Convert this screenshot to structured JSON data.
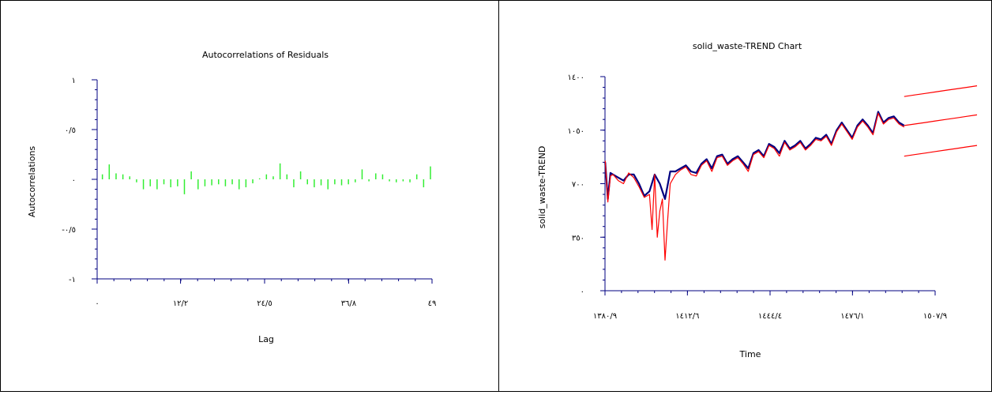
{
  "chart_data": [
    {
      "type": "bar",
      "title": "Autocorrelations of Residuals",
      "xlabel": "Lag",
      "ylabel": "Autocorrelations",
      "ylim": [
        -1,
        1
      ],
      "xlim": [
        0,
        49
      ],
      "y_ticks": [
        1,
        0.5,
        0,
        -0.5,
        -1
      ],
      "y_tick_labels": [
        "١",
        "٠/٥",
        "٠",
        "-٠/٥",
        "-١"
      ],
      "x_ticks": [
        0,
        12.2,
        24.5,
        36.8,
        49
      ],
      "x_tick_labels": [
        "٠",
        "١٢/٢",
        "٢٤/٥",
        "٣٦/٨",
        "٤٩"
      ],
      "bar_color": "#33ee33",
      "lags": [
        1,
        2,
        3,
        4,
        5,
        6,
        7,
        8,
        9,
        10,
        11,
        12,
        13,
        14,
        15,
        16,
        17,
        18,
        19,
        20,
        21,
        22,
        23,
        24,
        25,
        26,
        27,
        28,
        29,
        30,
        31,
        32,
        33,
        34,
        35,
        36,
        37,
        38,
        39,
        40,
        41,
        42,
        43,
        44,
        45,
        46,
        47,
        48,
        49
      ],
      "values": [
        0.05,
        0.15,
        0.06,
        0.05,
        0.03,
        -0.03,
        -0.1,
        -0.07,
        -0.1,
        -0.05,
        -0.08,
        -0.07,
        -0.15,
        0.08,
        -0.1,
        -0.07,
        -0.06,
        -0.05,
        -0.07,
        -0.05,
        -0.1,
        -0.08,
        -0.04,
        0.01,
        0.05,
        0.03,
        0.16,
        0.05,
        -0.08,
        0.08,
        -0.05,
        -0.08,
        -0.06,
        -0.1,
        -0.05,
        -0.06,
        -0.05,
        -0.03,
        0.1,
        -0.02,
        0.06,
        0.05,
        -0.02,
        -0.03,
        -0.02,
        -0.03,
        0.05,
        -0.08,
        0.13
      ]
    },
    {
      "type": "line",
      "title": "solid_waste-TREND Chart",
      "xlabel": "Time",
      "ylabel": "solid_waste-TREND",
      "ylim": [
        0,
        1400
      ],
      "xlim": [
        1380.9,
        1507.9
      ],
      "y_ticks": [
        0,
        350,
        700,
        1050,
        1400
      ],
      "y_tick_labels": [
        "٠",
        "٣٥٠",
        "٧٠٠",
        "١٠٥٠",
        "١٤٠٠"
      ],
      "x_ticks": [
        1380.9,
        1412.6,
        1444.4,
        1476.1,
        1507.9
      ],
      "x_tick_labels": [
        "١٣٨٠/٩",
        "١٤١٢/٦",
        "١٤٤٤/٤",
        "١٤٧٦/١",
        "١٥٠٧/٩"
      ],
      "series": [
        {
          "role": "observed",
          "color": "#000080",
          "x": [
            1381,
            1382,
            1383,
            1384,
            1386,
            1388,
            1390,
            1392,
            1394,
            1396,
            1398,
            1400,
            1402,
            1404,
            1406,
            1408,
            1410,
            1412,
            1414,
            1416,
            1418,
            1420,
            1422,
            1424,
            1426,
            1428,
            1430,
            1432,
            1434,
            1436,
            1438,
            1440,
            1442,
            1444,
            1446,
            1448,
            1450,
            1452,
            1454,
            1456,
            1458,
            1460,
            1462,
            1464,
            1466,
            1468,
            1470,
            1472,
            1474,
            1476,
            1478,
            1480,
            1482,
            1484,
            1486,
            1488,
            1490,
            1492,
            1494,
            1496
          ],
          "values": [
            840,
            600,
            770,
            760,
            740,
            720,
            760,
            760,
            700,
            620,
            650,
            760,
            700,
            600,
            780,
            780,
            800,
            820,
            780,
            770,
            830,
            860,
            800,
            880,
            890,
            830,
            860,
            880,
            840,
            800,
            900,
            920,
            880,
            960,
            940,
            900,
            980,
            930,
            950,
            980,
            930,
            960,
            1000,
            990,
            1020,
            960,
            1050,
            1100,
            1050,
            1000,
            1080,
            1120,
            1080,
            1030,
            1170,
            1100,
            1130,
            1140,
            1100,
            1080
          ]
        },
        {
          "role": "fitted",
          "color": "#ff0000",
          "x": [
            1381,
            1382,
            1383,
            1384,
            1386,
            1388,
            1390,
            1392,
            1394,
            1396,
            1397,
            1398,
            1399,
            1400,
            1401,
            1402,
            1403,
            1404,
            1405,
            1406,
            1408,
            1410,
            1412,
            1414,
            1416,
            1418,
            1420,
            1422,
            1424,
            1426,
            1428,
            1430,
            1432,
            1434,
            1436,
            1438,
            1440,
            1442,
            1444,
            1446,
            1448,
            1450,
            1452,
            1454,
            1456,
            1458,
            1460,
            1462,
            1464,
            1466,
            1468,
            1470,
            1472,
            1474,
            1476,
            1478,
            1480,
            1482,
            1484,
            1486,
            1488,
            1490,
            1492,
            1494,
            1496
          ],
          "values": [
            850,
            580,
            750,
            760,
            720,
            700,
            770,
            740,
            680,
            610,
            620,
            630,
            400,
            760,
            350,
            520,
            600,
            200,
            460,
            700,
            760,
            790,
            810,
            760,
            750,
            820,
            850,
            780,
            870,
            880,
            820,
            850,
            870,
            830,
            780,
            890,
            910,
            870,
            950,
            930,
            880,
            970,
            920,
            940,
            970,
            920,
            950,
            990,
            980,
            1010,
            950,
            1040,
            1090,
            1040,
            990,
            1070,
            1110,
            1070,
            1020,
            1160,
            1090,
            1120,
            1130,
            1090,
            1070
          ]
        },
        {
          "role": "forecast",
          "color": "#ff0000",
          "x": [
            1496,
            1500,
            1504,
            1508,
            1512,
            1516,
            1520,
            1524
          ],
          "values": [
            1080,
            1090,
            1100,
            1110,
            1120,
            1130,
            1140,
            1150
          ]
        },
        {
          "role": "upper",
          "color": "#ff0000",
          "x": [
            1496,
            1500,
            1504,
            1508,
            1512,
            1516,
            1520,
            1524
          ],
          "values": [
            1270,
            1280,
            1290,
            1300,
            1310,
            1320,
            1330,
            1340
          ]
        },
        {
          "role": "lower",
          "color": "#ff0000",
          "x": [
            1496,
            1500,
            1504,
            1508,
            1512,
            1516,
            1520,
            1524
          ],
          "values": [
            880,
            890,
            900,
            910,
            920,
            930,
            940,
            950
          ]
        }
      ]
    }
  ]
}
